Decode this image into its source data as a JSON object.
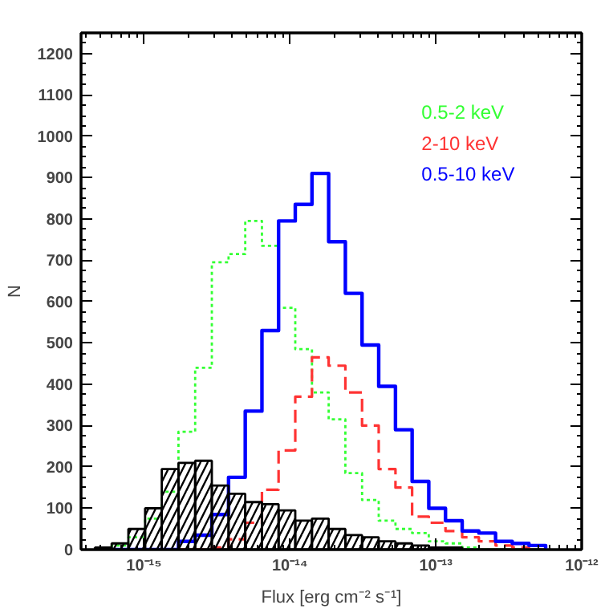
{
  "chart_data": {
    "type": "histogram",
    "xlabel": "Flux [erg cm⁻² s⁻¹]",
    "ylabel": "N",
    "log": "x",
    "bins": [
      4.61e-16,
      6e-16,
      7.81e-16,
      1.017e-15,
      1.323e-15,
      1.722e-15,
      2.241e-15,
      2.916e-15,
      3.796e-15,
      4.94e-15,
      6.43e-15,
      8.36e-15,
      1.088e-14,
      1.416e-14,
      1.843e-14,
      2.399e-14,
      3.122e-14,
      4.06e-14,
      5.29e-14,
      6.88e-14,
      8.95e-14,
      1.165e-13,
      1.516e-13,
      1.973e-13,
      2.568e-13,
      3.342e-13,
      4.35e-13,
      5.66e-13
    ],
    "series": [
      {
        "color": "#000000",
        "line_style": "solid",
        "values": [
          5,
          15,
          50,
          100,
          195,
          210,
          215,
          155,
          135,
          115,
          110,
          95,
          70,
          75,
          50,
          35,
          30,
          20,
          15,
          10,
          5,
          5,
          0,
          0,
          0,
          0,
          0
        ]
      },
      {
        "name": "0.5-2 keV",
        "color": "#33ff33",
        "line_style": "dotted",
        "values": [
          0,
          10,
          30,
          75,
          140,
          285,
          440,
          695,
          715,
          795,
          735,
          585,
          485,
          380,
          315,
          185,
          120,
          70,
          50,
          40,
          20,
          15,
          5,
          0,
          0,
          0,
          0
        ]
      },
      {
        "name": "2-10 keV",
        "color": "#ff3333",
        "line_style": "dashed",
        "values": [
          0,
          0,
          0,
          0,
          0,
          0,
          0,
          5,
          25,
          65,
          145,
          240,
          370,
          465,
          445,
          380,
          300,
          195,
          150,
          80,
          65,
          45,
          30,
          20,
          10,
          5,
          0
        ]
      },
      {
        "name": "0.5-10 keV",
        "color": "#0000ff",
        "line_style": "solid",
        "values": [
          0,
          0,
          0,
          0,
          0,
          20,
          35,
          85,
          175,
          335,
          530,
          795,
          835,
          910,
          745,
          620,
          495,
          395,
          290,
          165,
          100,
          70,
          45,
          40,
          20,
          15,
          10
        ]
      }
    ],
    "xlim": [
      3.7e-16,
      1e-12
    ],
    "xticks": [
      {
        "value": 1e-15,
        "label": "10⁻¹⁵"
      },
      {
        "value": 1e-14,
        "label": "10⁻¹⁴"
      },
      {
        "value": 1e-13,
        "label": "10⁻¹³"
      },
      {
        "value": 1e-12,
        "label": "10⁻¹²"
      }
    ],
    "ylim": [
      0,
      1250
    ],
    "yticks": [
      0,
      100,
      200,
      300,
      400,
      500,
      600,
      700,
      800,
      900,
      1000,
      1100,
      1200
    ],
    "legend": "top right",
    "grid": false
  }
}
